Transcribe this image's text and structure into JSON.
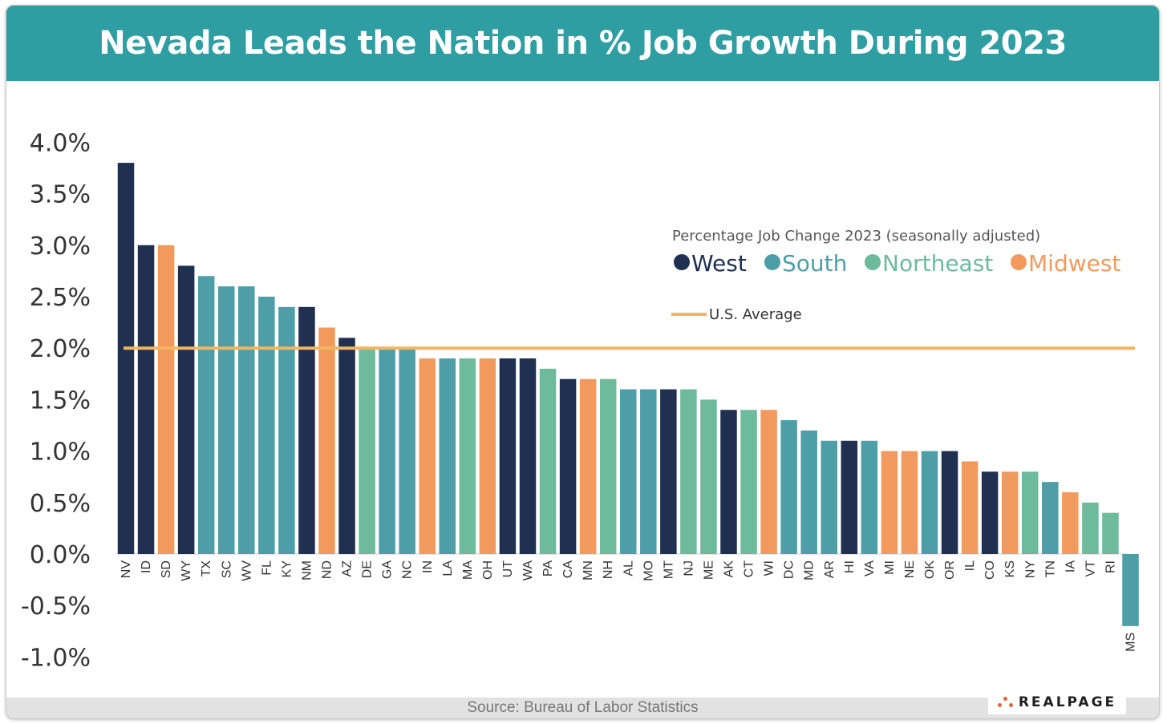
{
  "title": "Nevada Leads the Nation in % Job Growth During 2023",
  "source": "Source: Bureau of Labor Statistics",
  "logo_text": "REALPAGE",
  "colors": {
    "header": "#2e9ea3",
    "West": "#1f3050",
    "South": "#4e9ea8",
    "Northeast": "#6dbb9c",
    "Midwest": "#f29a5e",
    "us_average": "#f2b561"
  },
  "chart_data": {
    "type": "bar",
    "legend_title": "Percentage Job Change 2023 (seasonally adjusted)",
    "legend": [
      "West",
      "South",
      "Northeast",
      "Midwest"
    ],
    "legend_placement": "top-right",
    "reference_line": {
      "label": "U.S. Average",
      "value": 2.0
    },
    "ylim": [
      -1.0,
      4.0
    ],
    "y_ticks": [
      "4.0%",
      "3.5%",
      "3.0%",
      "2.5%",
      "2.0%",
      "1.5%",
      "1.0%",
      "0.5%",
      "0.0%",
      "-0.5%",
      "-1.0%"
    ],
    "y_tick_values": [
      4.0,
      3.5,
      3.0,
      2.5,
      2.0,
      1.5,
      1.0,
      0.5,
      0.0,
      -0.5,
      -1.0
    ],
    "grid": false,
    "categories": [
      "NV",
      "ID",
      "SD",
      "WY",
      "TX",
      "SC",
      "WV",
      "FL",
      "KY",
      "NM",
      "ND",
      "AZ",
      "DE",
      "GA",
      "NC",
      "IN",
      "LA",
      "MA",
      "OH",
      "UT",
      "WA",
      "PA",
      "CA",
      "MN",
      "NH",
      "AL",
      "MO",
      "MT",
      "NJ",
      "ME",
      "AK",
      "CT",
      "WI",
      "DC",
      "MD",
      "AR",
      "HI",
      "VA",
      "MI",
      "NE",
      "OK",
      "OR",
      "IL",
      "CO",
      "KS",
      "NY",
      "TN",
      "IA",
      "VT",
      "RI",
      "MS"
    ],
    "values": [
      3.8,
      3.0,
      3.0,
      2.8,
      2.7,
      2.6,
      2.6,
      2.5,
      2.4,
      2.4,
      2.2,
      2.1,
      2.0,
      2.0,
      2.0,
      1.9,
      1.9,
      1.9,
      1.9,
      1.9,
      1.9,
      1.8,
      1.7,
      1.7,
      1.7,
      1.6,
      1.6,
      1.6,
      1.6,
      1.5,
      1.4,
      1.4,
      1.4,
      1.3,
      1.2,
      1.1,
      1.1,
      1.1,
      1.0,
      1.0,
      1.0,
      1.0,
      0.9,
      0.8,
      0.8,
      0.8,
      0.7,
      0.6,
      0.5,
      0.4,
      -0.7
    ],
    "regions": [
      "West",
      "West",
      "Midwest",
      "West",
      "South",
      "South",
      "South",
      "South",
      "South",
      "West",
      "Midwest",
      "West",
      "Northeast",
      "South",
      "South",
      "Midwest",
      "South",
      "Northeast",
      "Midwest",
      "West",
      "West",
      "Northeast",
      "West",
      "Midwest",
      "Northeast",
      "South",
      "South",
      "West",
      "Northeast",
      "Northeast",
      "West",
      "Northeast",
      "Midwest",
      "South",
      "South",
      "South",
      "West",
      "South",
      "Midwest",
      "Midwest",
      "South",
      "West",
      "Midwest",
      "West",
      "Midwest",
      "Northeast",
      "South",
      "Midwest",
      "Northeast",
      "Northeast",
      "South"
    ]
  }
}
